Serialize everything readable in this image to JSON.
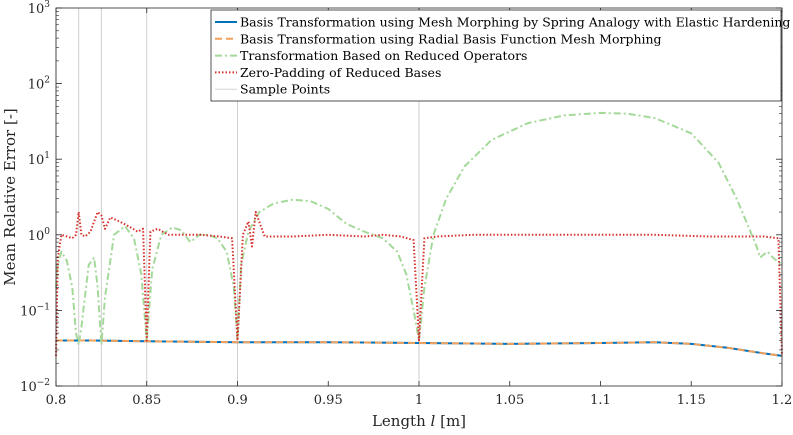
{
  "chart_data": {
    "type": "line",
    "title": "",
    "xlabel_parts": [
      "Length ",
      "l",
      " [m]"
    ],
    "ylabel": "Mean Relative Error [-]",
    "xlim": [
      0.8,
      1.2
    ],
    "ylim": [
      0.01,
      1000
    ],
    "yscale": "log",
    "grid": false,
    "legend_position": "top-right",
    "x_ticks": [
      0.8,
      0.85,
      0.9,
      0.95,
      1.0,
      1.05,
      1.1,
      1.15,
      1.2
    ],
    "x_tick_labels": [
      "0.8",
      "0.85",
      "0.9",
      "0.95",
      "1",
      "1.05",
      "1.1",
      "1.15",
      "1.2"
    ],
    "y_ticks": [
      {
        "value": 0.01,
        "base": "10",
        "exp": "−2"
      },
      {
        "value": 0.1,
        "base": "10",
        "exp": "−1"
      },
      {
        "value": 1,
        "base": "10",
        "exp": "0"
      },
      {
        "value": 10,
        "base": "10",
        "exp": "1"
      },
      {
        "value": 100,
        "base": "10",
        "exp": "2"
      },
      {
        "value": 1000,
        "base": "10",
        "exp": "3"
      }
    ],
    "sample_points": [
      0.8,
      0.8125,
      0.825,
      0.85,
      0.9,
      1.0,
      1.2
    ],
    "series": [
      {
        "name": "Basis Transformation using Mesh Morphing by Spring Analogy with Elastic Hardening",
        "color": "#0072BD",
        "dash": "solid",
        "x": [
          0.8,
          0.82,
          0.85,
          0.9,
          0.95,
          1.0,
          1.05,
          1.1,
          1.13,
          1.15,
          1.17,
          1.19,
          1.2
        ],
        "y": [
          0.04,
          0.04,
          0.039,
          0.038,
          0.038,
          0.037,
          0.036,
          0.037,
          0.038,
          0.036,
          0.032,
          0.027,
          0.025
        ]
      },
      {
        "name": "Basis Transformation using Radial Basis Function Mesh Morphing",
        "color": "#F2A15C",
        "dash": "dashed",
        "x": [
          0.8,
          0.82,
          0.85,
          0.9,
          0.95,
          1.0,
          1.05,
          1.1,
          1.13,
          1.15,
          1.17,
          1.19,
          1.2
        ],
        "y": [
          0.04,
          0.04,
          0.039,
          0.038,
          0.038,
          0.037,
          0.036,
          0.037,
          0.038,
          0.036,
          0.032,
          0.027,
          0.025
        ]
      },
      {
        "name": "Transformation Based on Reduced Operators",
        "color": "#A4D99A",
        "dash": "dashdot",
        "x": [
          0.8,
          0.801,
          0.803,
          0.806,
          0.809,
          0.811,
          0.8125,
          0.814,
          0.818,
          0.821,
          0.823,
          0.825,
          0.827,
          0.832,
          0.838,
          0.843,
          0.847,
          0.85,
          0.853,
          0.858,
          0.864,
          0.869,
          0.874,
          0.879,
          0.884,
          0.889,
          0.894,
          0.898,
          0.9,
          0.902,
          0.906,
          0.912,
          0.92,
          0.93,
          0.94,
          0.95,
          0.96,
          0.97,
          0.98,
          0.988,
          0.993,
          0.997,
          1.0,
          1.003,
          1.008,
          1.015,
          1.025,
          1.04,
          1.06,
          1.08,
          1.1,
          1.115,
          1.13,
          1.15,
          1.165,
          1.175,
          1.182,
          1.186,
          1.188,
          1.19,
          1.192,
          1.195,
          1.2
        ],
        "y": [
          0.2,
          0.4,
          0.6,
          0.45,
          0.2,
          0.05,
          0.035,
          0.06,
          0.4,
          0.5,
          0.2,
          0.035,
          0.15,
          1.0,
          1.3,
          0.9,
          0.3,
          0.04,
          0.35,
          1.0,
          1.25,
          1.15,
          0.8,
          1.0,
          1.0,
          0.9,
          0.6,
          0.2,
          0.04,
          0.4,
          1.1,
          2.0,
          2.6,
          2.9,
          2.8,
          2.2,
          1.4,
          1.1,
          0.9,
          0.6,
          0.3,
          0.1,
          0.04,
          0.2,
          1.0,
          3.0,
          8.0,
          18.0,
          30.0,
          38.0,
          41.0,
          40.0,
          35.0,
          22.0,
          9.0,
          3.0,
          1.2,
          0.7,
          0.5,
          0.55,
          0.6,
          0.5,
          0.4
        ]
      },
      {
        "name": "Zero-Padding of Reduced Bases",
        "color": "#D6302B",
        "dash": "dotted",
        "x": [
          0.8,
          0.801,
          0.803,
          0.806,
          0.809,
          0.811,
          0.8125,
          0.814,
          0.816,
          0.819,
          0.821,
          0.823,
          0.825,
          0.827,
          0.83,
          0.835,
          0.84,
          0.845,
          0.848,
          0.85,
          0.852,
          0.856,
          0.862,
          0.87,
          0.88,
          0.89,
          0.897,
          0.9,
          0.903,
          0.906,
          0.908,
          0.91,
          0.915,
          0.93,
          0.95,
          0.97,
          0.98,
          0.99,
          0.997,
          1.0,
          1.003,
          1.01,
          1.03,
          1.06,
          1.1,
          1.13,
          1.16,
          1.19,
          1.198,
          1.2
        ],
        "y": [
          0.025,
          0.5,
          1.0,
          0.95,
          0.9,
          1.0,
          2.0,
          1.0,
          0.95,
          1.1,
          1.5,
          2.0,
          1.8,
          1.2,
          1.7,
          1.5,
          1.3,
          1.1,
          1.2,
          0.04,
          1.1,
          1.2,
          1.0,
          1.0,
          1.0,
          0.95,
          0.9,
          0.04,
          1.0,
          1.5,
          0.7,
          2.0,
          0.95,
          0.95,
          1.0,
          0.95,
          1.0,
          0.95,
          0.85,
          0.04,
          0.9,
          0.95,
          1.0,
          1.0,
          1.0,
          1.0,
          0.95,
          0.95,
          0.9,
          0.025
        ]
      }
    ],
    "legend": [
      {
        "label": "Basis Transformation using Mesh Morphing by Spring Analogy with Elastic Hardening",
        "color": "#0072BD",
        "dash": "solid"
      },
      {
        "label": "Basis Transformation using Radial Basis Function Mesh Morphing",
        "color": "#F2A15C",
        "dash": "dashed"
      },
      {
        "label": "Transformation Based on Reduced Operators",
        "color": "#A4D99A",
        "dash": "dashdot"
      },
      {
        "label": "Zero-Padding of Reduced Bases",
        "color": "#D6302B",
        "dash": "dotted"
      },
      {
        "label": "Sample Points",
        "color": "#D3D3D3",
        "dash": "solid"
      }
    ]
  }
}
